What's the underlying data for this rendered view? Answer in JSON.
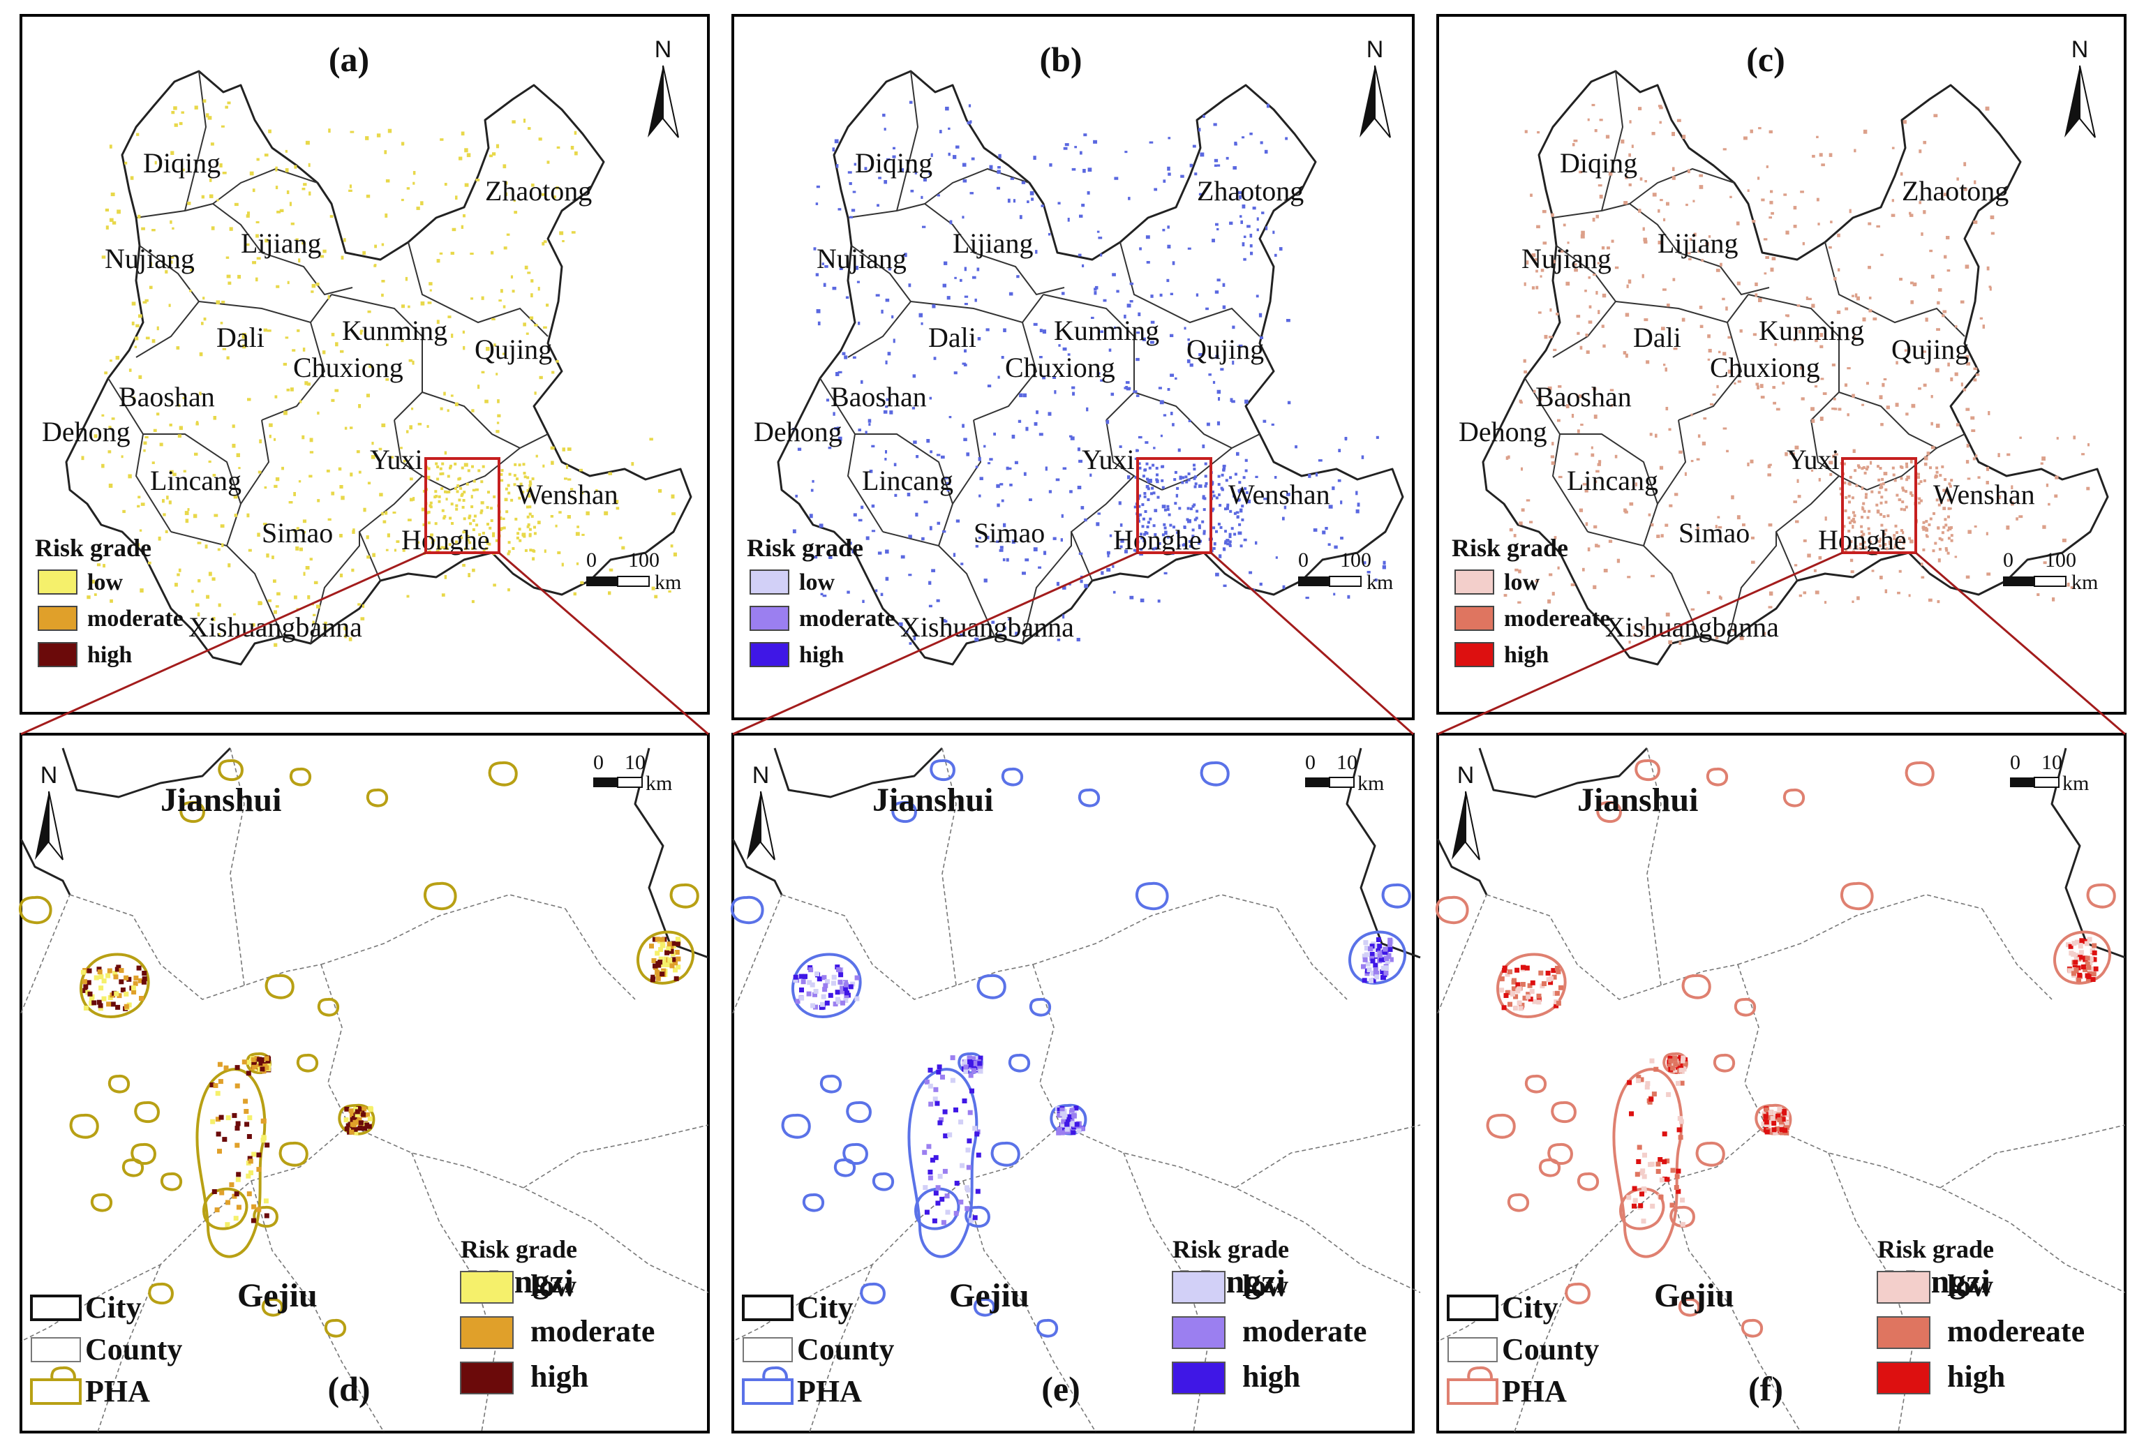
{
  "figure": {
    "panels": [
      {
        "id": "a",
        "label": "(a)",
        "kind": "overview",
        "palette": {
          "low": "#f5f06b",
          "moderate": "#e0a02a",
          "high": "#6b0a0a",
          "dots": "#e8d84a"
        },
        "legend": {
          "title": "Risk grade",
          "items": [
            "low",
            "moderate",
            "high"
          ]
        },
        "scale": {
          "zero": "0",
          "max": "100",
          "unit": "km"
        },
        "north": "N"
      },
      {
        "id": "b",
        "label": "(b)",
        "kind": "overview",
        "palette": {
          "low": "#d2d0f7",
          "moderate": "#9b7ff0",
          "high": "#3f17e6",
          "dots": "#5a68e0"
        },
        "legend": {
          "title": "Risk grade",
          "items": [
            "low",
            "moderate",
            "high"
          ]
        },
        "scale": {
          "zero": "0",
          "max": "100",
          "unit": "km"
        },
        "north": "N"
      },
      {
        "id": "c",
        "label": "(c)",
        "kind": "overview",
        "palette": {
          "low": "#f3cfcb",
          "moderate": "#df7560",
          "high": "#dd1010",
          "dots": "#dca08a"
        },
        "legend": {
          "title": "Risk grade",
          "items": [
            "low",
            "modereate",
            "high"
          ]
        },
        "scale": {
          "zero": "0",
          "max": "100",
          "unit": "km"
        },
        "north": "N"
      },
      {
        "id": "d",
        "label": "(d)",
        "kind": "zoom",
        "palette": {
          "low": "#f5f06b",
          "moderate": "#e0a02a",
          "high": "#6b0a0a",
          "pha": "#b8a014"
        },
        "legend": {
          "title": "Risk grade",
          "items": [
            "low",
            "moderate",
            "high"
          ]
        },
        "boundary_legend": [
          "City",
          "County",
          "PHA"
        ],
        "scale": {
          "zero": "0",
          "max": "10",
          "unit": "km"
        },
        "north": "N"
      },
      {
        "id": "e",
        "label": "(e)",
        "kind": "zoom",
        "palette": {
          "low": "#d2d0f7",
          "moderate": "#9b7ff0",
          "high": "#3f17e6",
          "pha": "#5a72e8"
        },
        "legend": {
          "title": "Risk grade",
          "items": [
            "low",
            "moderate",
            "high"
          ]
        },
        "boundary_legend": [
          "City",
          "County",
          "PHA"
        ],
        "scale": {
          "zero": "0",
          "max": "10",
          "unit": "km"
        },
        "north": "N"
      },
      {
        "id": "f",
        "label": "(f)",
        "kind": "zoom",
        "palette": {
          "low": "#f3cfcb",
          "moderate": "#df7560",
          "high": "#dd1010",
          "pha": "#df8070"
        },
        "legend": {
          "title": "Risk grade",
          "items": [
            "low",
            "modereate",
            "high"
          ]
        },
        "boundary_legend": [
          "City",
          "County",
          "PHA"
        ],
        "scale": {
          "zero": "0",
          "max": "10",
          "unit": "km"
        },
        "north": "N"
      }
    ],
    "prefectures": [
      "Diqing",
      "Zhaotong",
      "Lijiang",
      "Nujiang",
      "Dali",
      "Kunming",
      "Qujing",
      "Chuxiong",
      "Baoshan",
      "Dehong",
      "Yuxi",
      "Lincang",
      "Wenshan",
      "Simao",
      "Honghe",
      "Xishuangbanna"
    ],
    "zoom_places": [
      "Jianshui",
      "Gejiu",
      "Mengzi"
    ]
  }
}
